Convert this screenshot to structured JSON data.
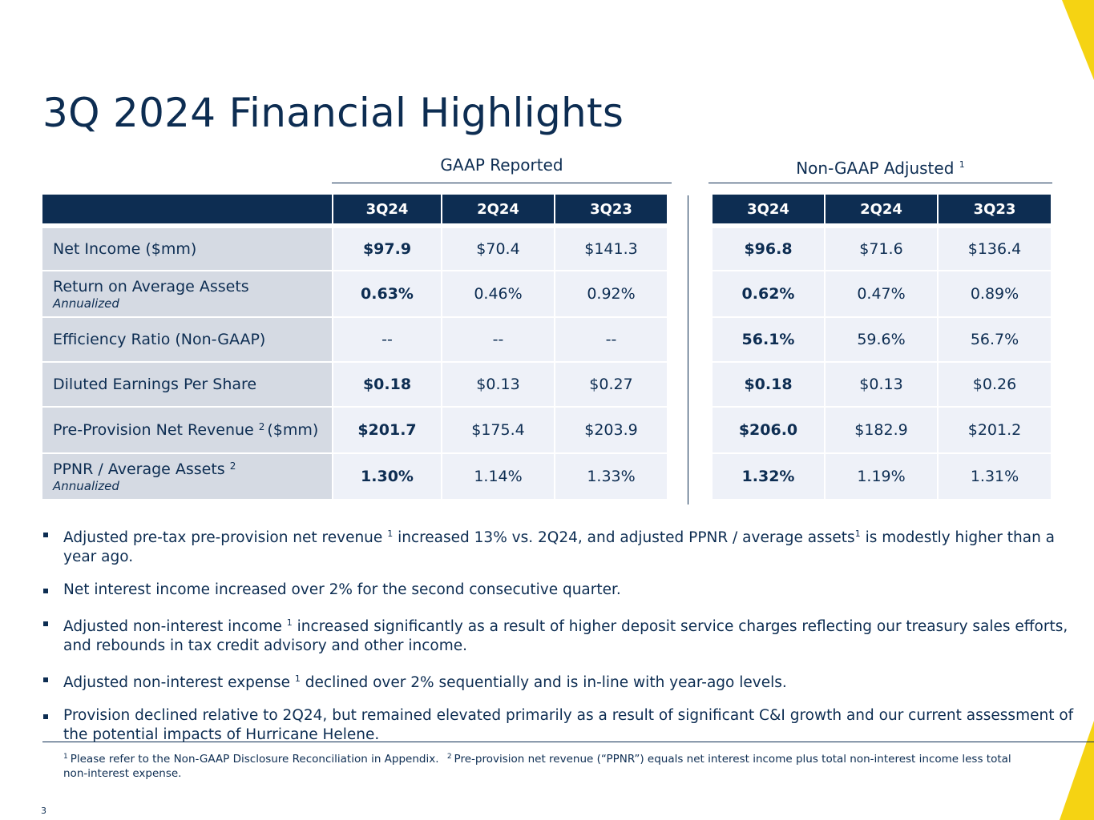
{
  "title": "3Q 2024 Financial Highlights",
  "accent_color": "#f5d313",
  "navy_color": "#0d2d52",
  "gaap": {
    "heading": "GAAP Reported",
    "columns": [
      "3Q24",
      "2Q24",
      "3Q23"
    ]
  },
  "nongaap": {
    "heading": "Non-GAAP Adjusted",
    "heading_footnote": "1",
    "columns": [
      "3Q24",
      "2Q24",
      "3Q23"
    ]
  },
  "rows": [
    {
      "label": "Net Income ($mm)",
      "sub": "",
      "footnote": "",
      "suffix": "",
      "gaap": [
        "$97.9",
        "$70.4",
        "$141.3"
      ],
      "nongaap": [
        "$96.8",
        "$71.6",
        "$136.4"
      ]
    },
    {
      "label": "Return on Average Assets",
      "sub": "Annualized",
      "footnote": "",
      "suffix": "",
      "gaap": [
        "0.63%",
        "0.46%",
        "0.92%"
      ],
      "nongaap": [
        "0.62%",
        "0.47%",
        "0.89%"
      ]
    },
    {
      "label": "Efficiency Ratio (Non-GAAP)",
      "sub": "",
      "footnote": "",
      "suffix": "",
      "gaap": [
        "--",
        "--",
        "--"
      ],
      "nongaap": [
        "56.1%",
        "59.6%",
        "56.7%"
      ]
    },
    {
      "label": "Diluted Earnings Per Share",
      "sub": "",
      "footnote": "",
      "suffix": "",
      "gaap": [
        "$0.18",
        "$0.13",
        "$0.27"
      ],
      "nongaap": [
        "$0.18",
        "$0.13",
        "$0.26"
      ]
    },
    {
      "label": "Pre-Provision Net Revenue",
      "sub": "",
      "footnote": "2",
      "suffix": "($mm)",
      "gaap": [
        "$201.7",
        "$175.4",
        "$203.9"
      ],
      "nongaap": [
        "$206.0",
        "$182.9",
        "$201.2"
      ]
    },
    {
      "label": "PPNR / Average Assets",
      "sub": "Annualized",
      "footnote": "2",
      "suffix": "",
      "gaap": [
        "1.30%",
        "1.14%",
        "1.33%"
      ],
      "nongaap": [
        "1.32%",
        "1.19%",
        "1.31%"
      ]
    }
  ],
  "bullets": [
    {
      "a": "Adjusted pre-tax pre-provision net revenue ",
      "fn1": "1",
      "b": " increased 13% vs. 2Q24, and adjusted PPNR / average assets",
      "fn2": "1",
      "c": " is modestly higher than a year ago."
    },
    {
      "a": "Net interest income increased over 2% for the second consecutive quarter.",
      "fn1": "",
      "b": "",
      "fn2": "",
      "c": ""
    },
    {
      "a": "Adjusted non-interest income ",
      "fn1": "1",
      "b": " increased significantly as a result of higher deposit service charges reflecting our treasury sales efforts, and rebounds in tax credit advisory and other income.",
      "fn2": "",
      "c": ""
    },
    {
      "a": "Adjusted non-interest expense ",
      "fn1": "1",
      "b": " declined over 2% sequentially and is in-line with year-ago levels.",
      "fn2": "",
      "c": ""
    },
    {
      "a": "Provision declined relative to 2Q24, but remained elevated primarily as a result of significant C&I growth and our current assessment of the potential impacts of Hurricane Helene.",
      "fn1": "",
      "b": "",
      "fn2": "",
      "c": ""
    }
  ],
  "footnotes": {
    "n1": "1",
    "t1": "Please refer to the Non-GAAP Disclosure Reconciliation in Appendix.",
    "n2": "2",
    "t2": "Pre-provision net revenue (“PPNR”) equals net interest income plus total non-interest income less total non-interest expense."
  },
  "page_number": "3"
}
